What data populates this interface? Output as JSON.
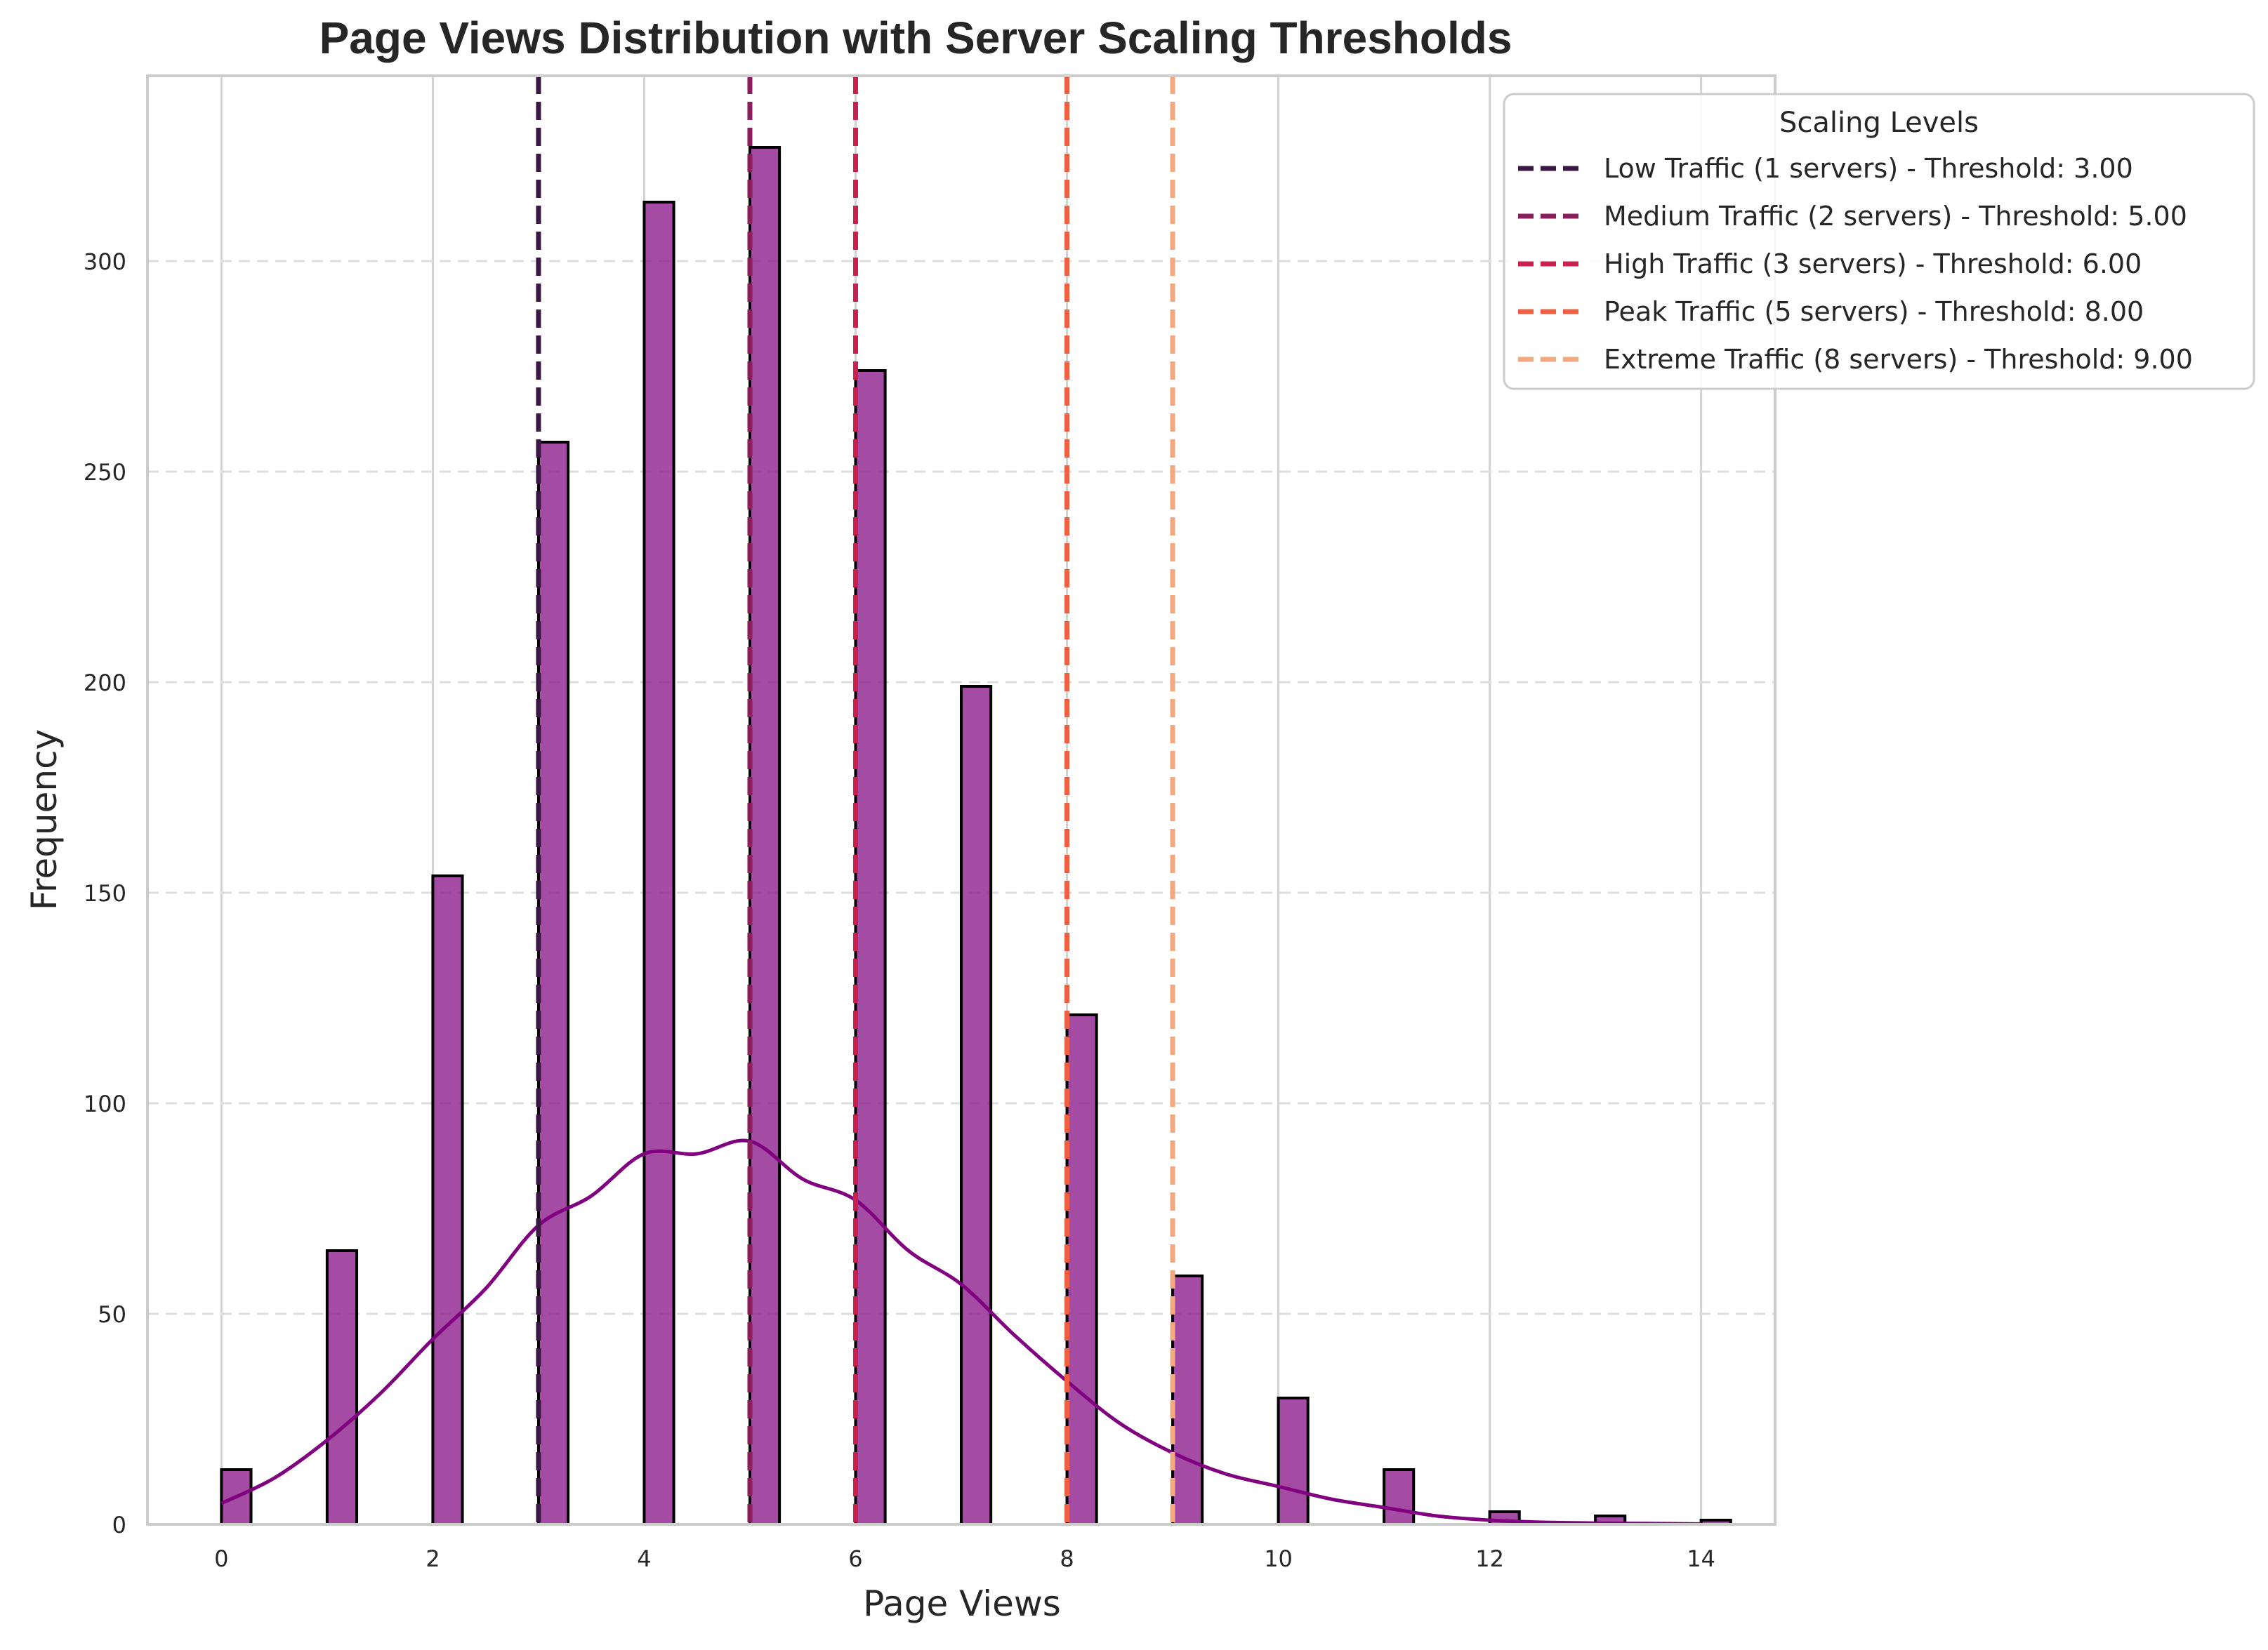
{
  "chart_data": {
    "type": "histogram",
    "title": "Page Views Distribution with Server Scaling Thresholds",
    "xlabel": "Page Views",
    "ylabel": "Frequency",
    "xlim": [
      -0.7,
      14.7
    ],
    "ylim": [
      0,
      344
    ],
    "x_ticks": [
      0,
      2,
      4,
      6,
      8,
      10,
      12,
      14
    ],
    "y_ticks": [
      0,
      50,
      100,
      150,
      200,
      250,
      300
    ],
    "grid": true,
    "bar_color": "#8b1a8b",
    "bar_edge_color": "#000000",
    "bars": [
      {
        "x": 0,
        "value": 13
      },
      {
        "x": 1,
        "value": 65
      },
      {
        "x": 2,
        "value": 154
      },
      {
        "x": 3,
        "value": 257
      },
      {
        "x": 4,
        "value": 314
      },
      {
        "x": 5,
        "value": 327
      },
      {
        "x": 6,
        "value": 274
      },
      {
        "x": 7,
        "value": 199
      },
      {
        "x": 8,
        "value": 121
      },
      {
        "x": 9,
        "value": 59
      },
      {
        "x": 10,
        "value": 30
      },
      {
        "x": 11,
        "value": 13
      },
      {
        "x": 12,
        "value": 3
      },
      {
        "x": 13,
        "value": 2
      },
      {
        "x": 14,
        "value": 1
      }
    ],
    "kde": {
      "color": "#800080",
      "points": [
        [
          0,
          5
        ],
        [
          0.5,
          11
        ],
        [
          1,
          20
        ],
        [
          1.5,
          31
        ],
        [
          2,
          44
        ],
        [
          2.5,
          56
        ],
        [
          3,
          71
        ],
        [
          3.5,
          78
        ],
        [
          4,
          88
        ],
        [
          4.5,
          88
        ],
        [
          5,
          91
        ],
        [
          5.5,
          82
        ],
        [
          6,
          77
        ],
        [
          6.5,
          65
        ],
        [
          7,
          57
        ],
        [
          7.5,
          45
        ],
        [
          8,
          34
        ],
        [
          8.5,
          24
        ],
        [
          9,
          17
        ],
        [
          9.5,
          12
        ],
        [
          10,
          9
        ],
        [
          10.5,
          6
        ],
        [
          11,
          4
        ],
        [
          11.5,
          2
        ],
        [
          12,
          1
        ],
        [
          12.5,
          0.5
        ],
        [
          13,
          0.3
        ],
        [
          13.5,
          0.2
        ],
        [
          14,
          0.1
        ]
      ]
    },
    "thresholds": [
      {
        "value": 3,
        "label": "Low Traffic (1 servers) - Threshold: 3.00",
        "color": "#3b1743"
      },
      {
        "value": 5,
        "label": "Medium Traffic (2 servers) - Threshold: 5.00",
        "color": "#8c1e5e"
      },
      {
        "value": 6,
        "label": "High Traffic (3 servers) - Threshold: 6.00",
        "color": "#cb1f4f"
      },
      {
        "value": 8,
        "label": "Peak Traffic (5 servers) - Threshold: 8.00",
        "color": "#f05f41"
      },
      {
        "value": 9,
        "label": "Extreme Traffic (8 servers) - Threshold: 9.00",
        "color": "#f3a97f"
      }
    ],
    "legend": {
      "title": "Scaling Levels",
      "position": "upper-right-outside"
    }
  }
}
